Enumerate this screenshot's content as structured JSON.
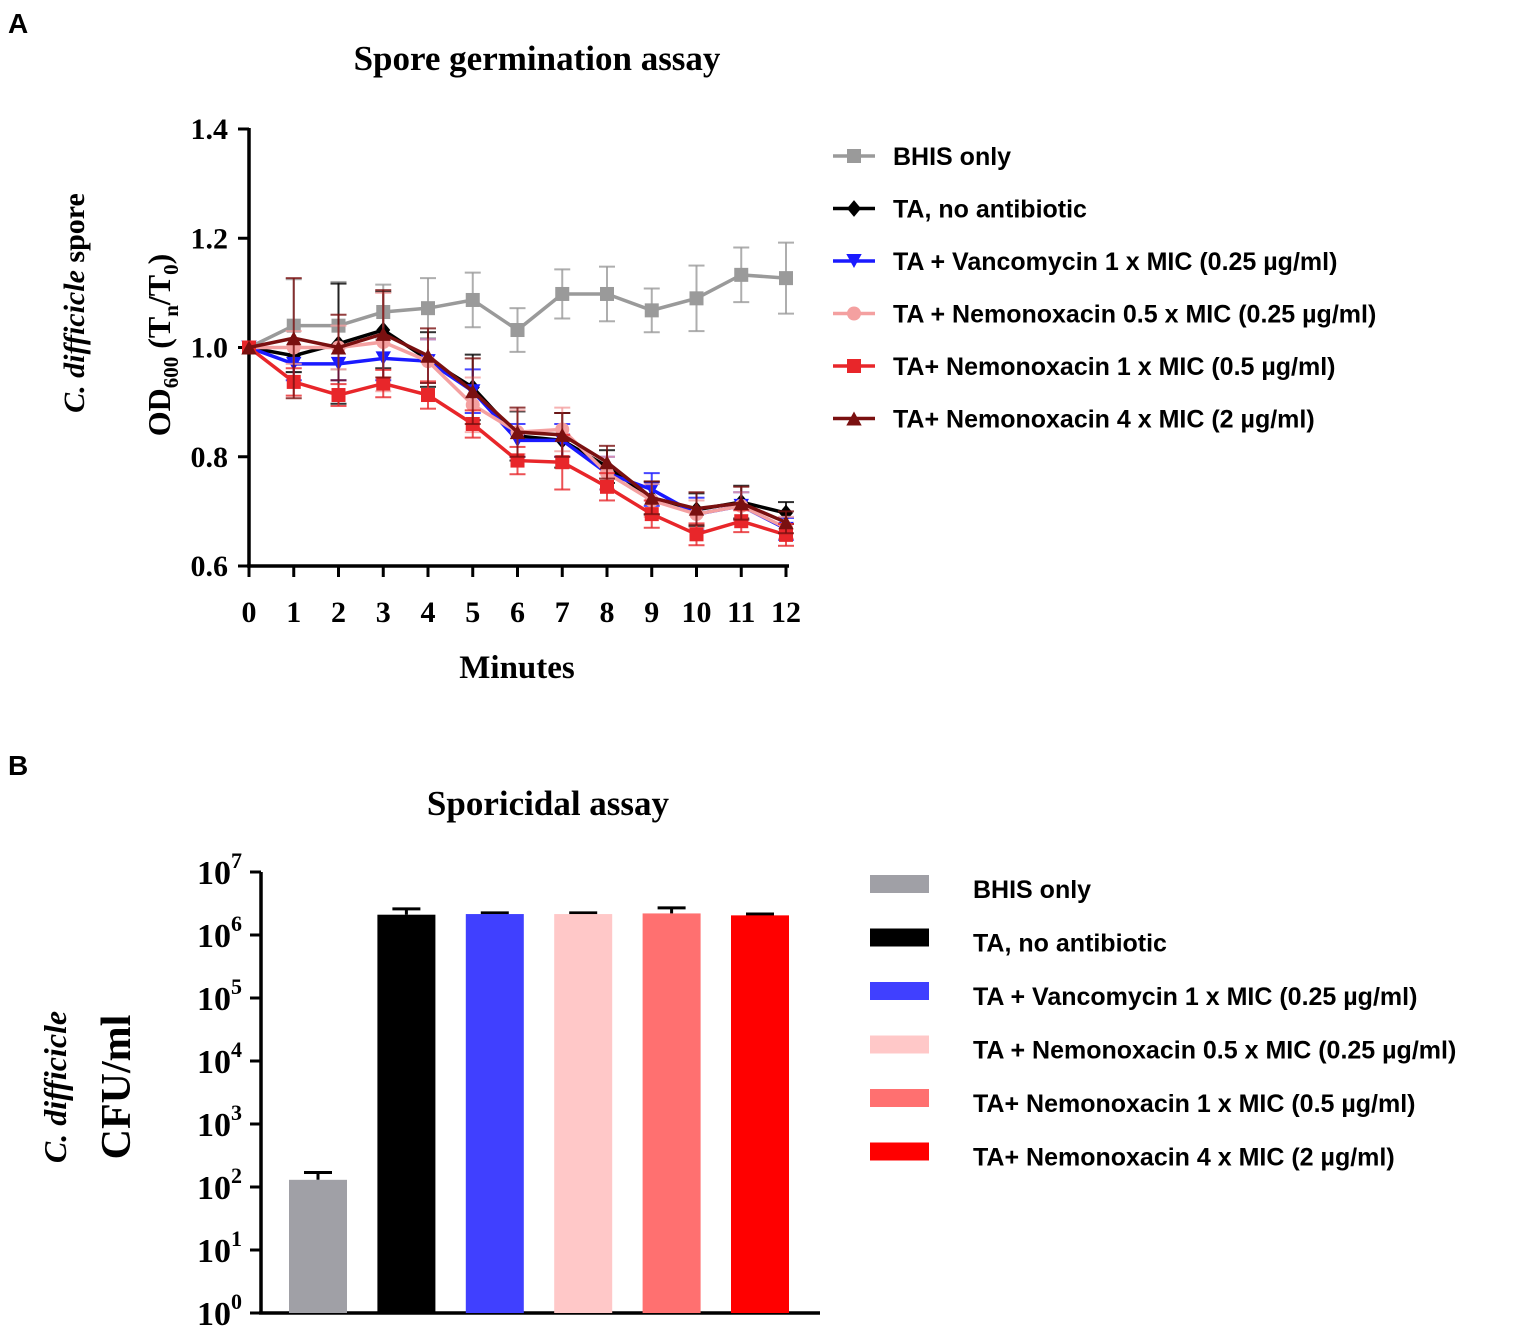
{
  "chart_data": [
    {
      "panel": "A",
      "type": "line",
      "title": "Spore germination assay",
      "xlabel": "Minutes",
      "ylabel_parts": [
        "C. difficicle",
        " spore",
        "OD",
        "600",
        " (T",
        "n",
        "/T",
        "0",
        ")"
      ],
      "ylim": [
        0.6,
        1.4
      ],
      "yticks": [
        0.6,
        0.8,
        1.0,
        1.2,
        1.4
      ],
      "ytick_labels": [
        "0.6",
        "0.8",
        "1.0",
        "1.2",
        "1.4"
      ],
      "x": [
        0,
        1,
        2,
        3,
        4,
        5,
        6,
        7,
        8,
        9,
        10,
        11,
        12
      ],
      "x_labels": [
        "0",
        "1",
        "2",
        "3",
        "4",
        "5",
        "6",
        "7",
        "8",
        "9",
        "10",
        "11",
        "12"
      ],
      "series": [
        {
          "name": "BHIS only",
          "color": "#9a9a9a",
          "marker": "square",
          "values": [
            1.0,
            1.04,
            1.04,
            1.065,
            1.072,
            1.087,
            1.032,
            1.098,
            1.098,
            1.068,
            1.09,
            1.133,
            1.127
          ],
          "errors": [
            0,
            0.085,
            0.08,
            0.05,
            0.055,
            0.05,
            0.04,
            0.045,
            0.05,
            0.04,
            0.06,
            0.05,
            0.065
          ]
        },
        {
          "name": "TA, no antibiotic",
          "color": "#000000",
          "marker": "diamond",
          "values": [
            1.0,
            0.985,
            1.007,
            1.032,
            0.978,
            0.927,
            0.838,
            0.83,
            0.782,
            0.724,
            0.703,
            0.717,
            0.697
          ],
          "errors": [
            0,
            0.03,
            0.11,
            0.07,
            0.05,
            0.06,
            0.045,
            0.05,
            0.03,
            0.03,
            0.03,
            0.03,
            0.02
          ]
        },
        {
          "name": "TA + Vancomycin 1 x MIC (0.25 µg/ml)",
          "color": "#1a1aff",
          "marker": "triangle-down",
          "values": [
            1.0,
            0.97,
            0.97,
            0.98,
            0.975,
            0.92,
            0.83,
            0.83,
            0.77,
            0.74,
            0.695,
            0.71,
            0.668
          ],
          "errors": [
            0,
            0.03,
            0.03,
            0.04,
            0.04,
            0.04,
            0.03,
            0.03,
            0.03,
            0.03,
            0.03,
            0.025,
            0.02
          ]
        },
        {
          "name": "TA + Nemonoxacin 0.5 x MIC (0.25 µg/ml)",
          "color": "#f4a0a0",
          "marker": "circle",
          "values": [
            1.0,
            1.0,
            1.0,
            1.01,
            0.975,
            0.895,
            0.845,
            0.85,
            0.77,
            0.72,
            0.695,
            0.71,
            0.67
          ],
          "errors": [
            0,
            0.03,
            0.04,
            0.09,
            0.04,
            0.05,
            0.04,
            0.04,
            0.03,
            0.03,
            0.025,
            0.025,
            0.02
          ]
        },
        {
          "name": "TA+ Nemonoxacin 1 x MIC (0.5 µg/ml)",
          "color": "#e8262a",
          "marker": "square",
          "values": [
            1.0,
            0.937,
            0.913,
            0.934,
            0.913,
            0.86,
            0.793,
            0.79,
            0.745,
            0.695,
            0.658,
            0.682,
            0.657
          ],
          "errors": [
            0,
            0.025,
            0.02,
            0.025,
            0.025,
            0.025,
            0.025,
            0.05,
            0.025,
            0.025,
            0.02,
            0.02,
            0.02
          ]
        },
        {
          "name": "TA+ Nemonoxacin 4 x MIC (2 µg/ml)",
          "color": "#7a1010",
          "marker": "triangle-up",
          "values": [
            1.0,
            1.017,
            1.0,
            1.025,
            0.985,
            0.92,
            0.845,
            0.84,
            0.79,
            0.725,
            0.705,
            0.715,
            0.68
          ],
          "errors": [
            0,
            0.11,
            0.06,
            0.08,
            0.05,
            0.06,
            0.045,
            0.04,
            0.03,
            0.03,
            0.03,
            0.03,
            0.02
          ]
        }
      ]
    },
    {
      "panel": "B",
      "type": "bar",
      "title": "Sporicidal assay",
      "ylabel_parts": [
        "C. difficicle",
        "CFU/ml"
      ],
      "yscale": "log",
      "ylim": [
        1,
        10000000
      ],
      "ytick_exponents": [
        "0",
        "1",
        "2",
        "3",
        "4",
        "5",
        "6",
        "7"
      ],
      "ytick_base": "10",
      "categories": [
        "BHIS only",
        "TA, no antibiotic",
        "TA + Vancomycin 1 x MIC (0.25 µg/ml)",
        "TA + Nemonoxacin 0.5 x MIC (0.25 µg/ml)",
        "TA+ Nemonoxacin 1 x MIC (0.5 µg/ml)",
        "TA+ Nemonoxacin 4 x MIC (2 µg/ml)"
      ],
      "values": [
        130,
        2100000,
        2150000,
        2150000,
        2200000,
        2050000
      ],
      "error_upper": [
        170,
        2600000,
        2250000,
        2250000,
        2700000,
        2150000
      ],
      "colors": [
        "#a0a0a6",
        "#000000",
        "#4040ff",
        "#ffc8c8",
        "#ff7070",
        "#ff0000"
      ]
    }
  ],
  "panel_labels": {
    "a": "A",
    "b": "B"
  }
}
